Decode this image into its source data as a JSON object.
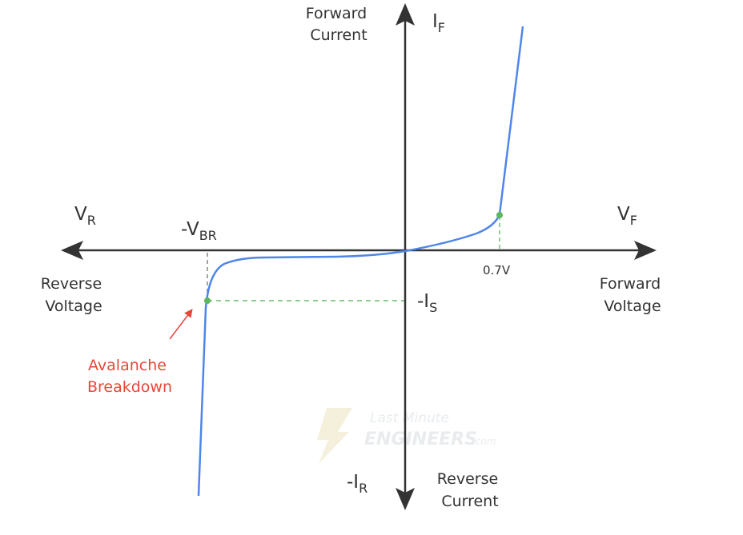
{
  "labels": {
    "forward_current": [
      "Forward",
      "Current"
    ],
    "reverse_current": [
      "Reverse",
      "Current"
    ],
    "forward_voltage": [
      "Forward",
      "Voltage"
    ],
    "reverse_voltage": [
      "Reverse",
      "Voltage"
    ],
    "i_f": {
      "main": "I",
      "sub": "F"
    },
    "i_r": {
      "main": "-I",
      "sub": "R"
    },
    "v_f": {
      "main": "V",
      "sub": "F"
    },
    "v_r": {
      "main": "V",
      "sub": "R"
    },
    "v_br": {
      "main": "-V",
      "sub": "BR"
    },
    "i_s": {
      "main": "-I",
      "sub": "S"
    },
    "knee_voltage": "0.7V",
    "avalanche": [
      "Avalanche",
      "Breakdown"
    ]
  },
  "watermark": {
    "line1": "Last Minute",
    "line2": "ENGINEERS",
    "line3": ".com"
  },
  "colors": {
    "axis": "#333333",
    "curve": "#4f86e8",
    "guide": "#4caf50",
    "point": "#5cb85c",
    "annotation": "#e8473a"
  }
}
